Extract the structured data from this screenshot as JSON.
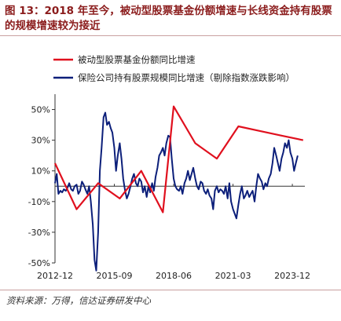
{
  "header": {
    "title": "图 13：2018 年至今，被动型股票基金份额增速与长线资金持有股票的规模增速较为接近"
  },
  "footer": {
    "source": "资料来源：万得，信达证券研发中心"
  },
  "chart_data": {
    "type": "line",
    "title": "",
    "xlabel": "",
    "ylabel": "",
    "ylim": [
      -50,
      60
    ],
    "yticks": [
      "-50%",
      "-30%",
      "-10%",
      "10%",
      "30%",
      "50%"
    ],
    "ytick_values": [
      -50,
      -30,
      -10,
      10,
      30,
      50
    ],
    "xticks": [
      "2012-12",
      "2015-09",
      "2018-06",
      "2021-03",
      "2023-12"
    ],
    "xtick_values": [
      2012.92,
      2015.67,
      2018.42,
      2021.17,
      2023.92
    ],
    "xlim": [
      2012.92,
      2024.5
    ],
    "legend_position": "top",
    "grid": false,
    "colors": {
      "passive": "#e0101e",
      "insurance": "#0c1f7a"
    },
    "series": [
      {
        "name": "被动型股票基金份额同比增速",
        "x": [
          2012.92,
          2013.92,
          2014.92,
          2015.92,
          2016.92,
          2017.92,
          2018.42,
          2019.42,
          2020.42,
          2021.42,
          2022.42,
          2023.42,
          2024.42
        ],
        "y": [
          15,
          -15,
          2,
          -8,
          10,
          -17,
          52,
          28,
          18,
          39,
          36,
          33,
          30
        ]
      },
      {
        "name": "保险公司持有股票规模同比增速（剔除指数涨跌影响）",
        "x": [
          2012.92,
          2013.0,
          2013.08,
          2013.17,
          2013.25,
          2013.33,
          2013.42,
          2013.5,
          2013.58,
          2013.67,
          2013.75,
          2013.83,
          2013.92,
          2014.0,
          2014.08,
          2014.17,
          2014.25,
          2014.33,
          2014.42,
          2014.5,
          2014.58,
          2014.67,
          2014.75,
          2014.83,
          2014.92,
          2015.0,
          2015.08,
          2015.17,
          2015.25,
          2015.33,
          2015.42,
          2015.5,
          2015.58,
          2015.67,
          2015.75,
          2015.83,
          2015.92,
          2016.0,
          2016.08,
          2016.17,
          2016.25,
          2016.33,
          2016.42,
          2016.5,
          2016.58,
          2016.67,
          2016.75,
          2016.83,
          2016.92,
          2017.0,
          2017.08,
          2017.17,
          2017.25,
          2017.33,
          2017.42,
          2017.5,
          2017.58,
          2017.67,
          2017.75,
          2017.83,
          2017.92,
          2018.0,
          2018.08,
          2018.17,
          2018.25,
          2018.33,
          2018.42,
          2018.5,
          2018.58,
          2018.67,
          2018.75,
          2018.83,
          2018.92,
          2019.0,
          2019.08,
          2019.17,
          2019.25,
          2019.33,
          2019.42,
          2019.5,
          2019.58,
          2019.67,
          2019.75,
          2019.83,
          2019.92,
          2020.0,
          2020.08,
          2020.17,
          2020.25,
          2020.33,
          2020.42,
          2020.5,
          2020.58,
          2020.67,
          2020.75,
          2020.83,
          2020.92,
          2021.0,
          2021.08,
          2021.17,
          2021.25,
          2021.33,
          2021.42,
          2021.5,
          2021.58,
          2021.67,
          2021.75,
          2021.83,
          2021.92,
          2022.0,
          2022.08,
          2022.17,
          2022.25,
          2022.33,
          2022.42,
          2022.5,
          2022.58,
          2022.67,
          2022.75,
          2022.83,
          2022.92,
          2023.0,
          2023.08,
          2023.17,
          2023.25,
          2023.33,
          2023.42,
          2023.5,
          2023.58,
          2023.67,
          2023.75,
          2023.83,
          2023.92,
          2024.0,
          2024.08,
          2024.17
        ],
        "y": [
          2,
          8,
          -5,
          -3,
          -4,
          -2,
          -3,
          -1,
          2,
          -2,
          -3,
          0,
          1,
          -5,
          -3,
          3,
          1,
          -2,
          -5,
          0,
          -10,
          -25,
          -48,
          -55,
          -30,
          10,
          25,
          45,
          48,
          40,
          42,
          38,
          35,
          25,
          10,
          20,
          28,
          18,
          5,
          -3,
          -8,
          -5,
          0,
          5,
          8,
          2,
          0,
          5,
          3,
          -4,
          0,
          -7,
          0,
          -4,
          2,
          -3,
          6,
          12,
          20,
          22,
          25,
          20,
          28,
          33,
          32,
          18,
          5,
          0,
          -2,
          -3,
          0,
          -5,
          2,
          5,
          10,
          4,
          8,
          12,
          5,
          0,
          -2,
          3,
          2,
          -3,
          -5,
          -2,
          -6,
          -8,
          -15,
          -3,
          0,
          -4,
          -2,
          -3,
          -5,
          0,
          -8,
          2,
          -10,
          -15,
          -18,
          -21,
          -12,
          -5,
          0,
          -8,
          -6,
          -3,
          -7,
          -5,
          -3,
          -10,
          0,
          8,
          5,
          3,
          -2,
          2,
          0,
          5,
          8,
          15,
          25,
          20,
          15,
          10,
          18,
          22,
          28,
          25,
          30,
          22,
          18,
          10,
          15,
          20
        ]
      }
    ]
  }
}
